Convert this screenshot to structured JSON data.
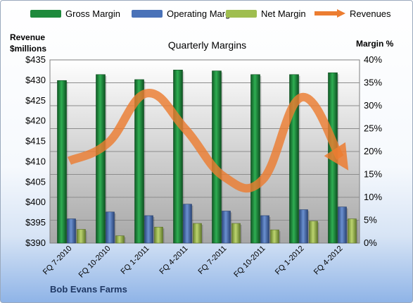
{
  "chart_data": {
    "type": "bar",
    "title": "Quarterly Margins",
    "company": "Bob Evans Farms",
    "ylabel_left_line1": "Revenue",
    "ylabel_left_line2": "$millions",
    "ylabel_right": "Margin  %",
    "categories": [
      "FQ 7-2010",
      "FQ 10-2010",
      "FQ 1-2011",
      "FQ 4-2011",
      "FQ 7-2011",
      "FQ 10-2011",
      "FQ 1-2012",
      "FQ 4-2012"
    ],
    "left_axis": {
      "min": 390,
      "max": 435,
      "step": 5,
      "ticks": [
        "$390",
        "$395",
        "$400",
        "$405",
        "$410",
        "$415",
        "$420",
        "$425",
        "$430",
        "$435"
      ]
    },
    "right_axis": {
      "min": 0,
      "max": 40,
      "step": 5,
      "ticks": [
        "0%",
        "5%",
        "10%",
        "15%",
        "20%",
        "25%",
        "30%",
        "35%",
        "40%"
      ]
    },
    "grid": true,
    "legend_position": "top",
    "series": [
      {
        "name": "Gross Margin",
        "axis": "right",
        "color": "#1e8a3c",
        "values": [
          35.5,
          36.8,
          35.7,
          37.8,
          37.6,
          36.8,
          36.8,
          37.2
        ]
      },
      {
        "name": "Operating Margin",
        "axis": "right",
        "color": "#4a72b8",
        "values": [
          5.3,
          6.8,
          6.0,
          8.5,
          7.0,
          6.0,
          7.3,
          7.9
        ]
      },
      {
        "name": "Net Margin",
        "axis": "right",
        "color": "#9fbe4f",
        "values": [
          3.0,
          1.6,
          3.5,
          4.3,
          4.3,
          2.9,
          4.8,
          5.3
        ]
      },
      {
        "name": "Revenues",
        "axis": "left",
        "type": "line",
        "color": "#ec7d31",
        "values": [
          410.2,
          414.6,
          426.8,
          418.0,
          406.3,
          405.6,
          425.8,
          411.0
        ]
      }
    ]
  }
}
